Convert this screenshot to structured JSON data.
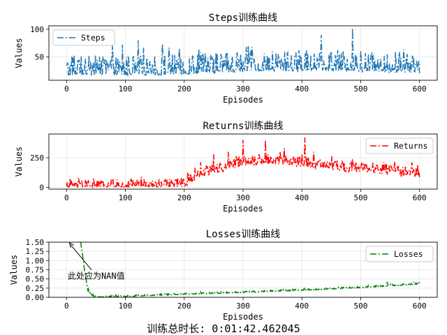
{
  "figure": {
    "footer_text": "训练总时长: 0:01:42.462045"
  },
  "chart_data": [
    {
      "type": "line",
      "title": "Steps训练曲线",
      "xlabel": "Episodes",
      "ylabel": "Values",
      "xlim": [
        -30,
        630
      ],
      "ylim": [
        8,
        106
      ],
      "xticks": [
        0,
        100,
        200,
        300,
        400,
        500,
        600
      ],
      "yticks": [
        50,
        100
      ],
      "grid": true,
      "legend_placement": "upper left",
      "series": [
        {
          "name": "Steps",
          "color": "#1f77b4",
          "linestyle": "dashdot",
          "x_start": 0,
          "x_step": 1,
          "count": 601,
          "trend": [
            [
              0,
              20
            ],
            [
              200,
              22
            ],
            [
              300,
              28
            ],
            [
              450,
              30
            ],
            [
              600,
              25
            ]
          ],
          "noise_low": 8,
          "noise_high": 55,
          "floor": 10,
          "peaks": [
            [
              20,
              40
            ],
            [
              52,
              45
            ],
            [
              75,
              45
            ],
            [
              95,
              72
            ],
            [
              122,
              80
            ],
            [
              150,
              52
            ],
            [
              180,
              55
            ],
            [
              215,
              50
            ],
            [
              240,
              48
            ],
            [
              262,
              55
            ],
            [
              290,
              58
            ],
            [
              315,
              68
            ],
            [
              360,
              55
            ],
            [
              395,
              62
            ],
            [
              430,
              57
            ],
            [
              450,
              60
            ],
            [
              470,
              60
            ],
            [
              486,
              102
            ],
            [
              500,
              62
            ],
            [
              545,
              55
            ],
            [
              565,
              58
            ],
            [
              590,
              48
            ]
          ]
        }
      ]
    },
    {
      "type": "line",
      "title": "Returns训练曲线",
      "xlabel": "Episodes",
      "ylabel": "Values",
      "xlim": [
        -30,
        630
      ],
      "ylim": [
        -15,
        450
      ],
      "xticks": [
        0,
        100,
        200,
        300,
        400,
        500,
        600
      ],
      "yticks": [
        0,
        250
      ],
      "grid": true,
      "legend_placement": "upper right",
      "series": [
        {
          "name": "Returns",
          "color": "#ff0000",
          "linestyle": "dashdot",
          "x_start": 0,
          "x_step": 1,
          "count": 601,
          "trend": [
            [
              0,
              10
            ],
            [
              150,
              14
            ],
            [
              190,
              20
            ],
            [
              205,
              45
            ],
            [
              230,
              130
            ],
            [
              270,
              170
            ],
            [
              300,
              220
            ],
            [
              340,
              230
            ],
            [
              400,
              210
            ],
            [
              450,
              180
            ],
            [
              500,
              160
            ],
            [
              550,
              140
            ],
            [
              600,
              120
            ]
          ],
          "noise_low": 60,
          "noise_high": 90,
          "floor": 5,
          "peaks": [
            [
              300,
              400
            ],
            [
              338,
              400
            ],
            [
              405,
              420
            ],
            [
              370,
              330
            ],
            [
              420,
              300
            ],
            [
              250,
              280
            ],
            [
              275,
              300
            ]
          ]
        }
      ]
    },
    {
      "type": "line",
      "title": "Losses训练曲线",
      "xlabel": "Episodes",
      "ylabel": "Values",
      "xlim": [
        -30,
        630
      ],
      "ylim": [
        0,
        1.5
      ],
      "xticks": [
        0,
        100,
        200,
        300,
        400,
        500,
        600
      ],
      "yticks": [
        0.0,
        0.25,
        0.5,
        0.75,
        1.0,
        1.25,
        1.5
      ],
      "grid": true,
      "legend_placement": "upper right",
      "annotation": {
        "text": "此处应为NAN值",
        "xy": [
          5,
          1.48
        ],
        "xytext": [
          2,
          0.5
        ]
      },
      "series": [
        {
          "name": "Losses",
          "color": "#008000",
          "linestyle": "dashdot",
          "x_start": 24,
          "x_step": 1,
          "count": 577,
          "trend": [
            [
              24,
              1.5
            ],
            [
              30,
              0.8
            ],
            [
              36,
              0.2
            ],
            [
              45,
              0.02
            ],
            [
              60,
              0.01
            ],
            [
              100,
              0.02
            ],
            [
              200,
              0.08
            ],
            [
              300,
              0.13
            ],
            [
              400,
              0.19
            ],
            [
              500,
              0.26
            ],
            [
              600,
              0.36
            ]
          ],
          "noise_low": 0.0,
          "noise_high": 0.06,
          "floor": 0.0,
          "peaks": [
            [
              545,
              0.42
            ],
            [
              590,
              0.42
            ]
          ]
        }
      ]
    }
  ]
}
